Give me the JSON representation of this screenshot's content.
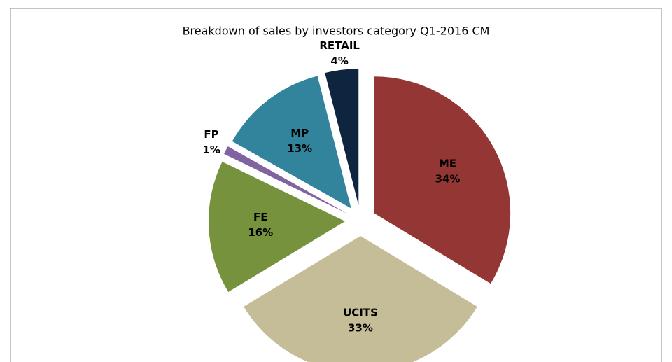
{
  "chart_data": {
    "type": "pie",
    "title": "Breakdown of sales by investors category Q1-2016 CM",
    "categories": [
      "ME",
      "UCITS",
      "FE",
      "FP",
      "MP",
      "RETAIL"
    ],
    "values": [
      34,
      33,
      16,
      1,
      13,
      4
    ],
    "value_labels": [
      "34%",
      "33%",
      "16%",
      "1%",
      "13%",
      "4%"
    ],
    "colors": [
      "#943634",
      "#c4bd97",
      "#76923c",
      "#8064a2",
      "#31849b",
      "#0f243e"
    ]
  }
}
